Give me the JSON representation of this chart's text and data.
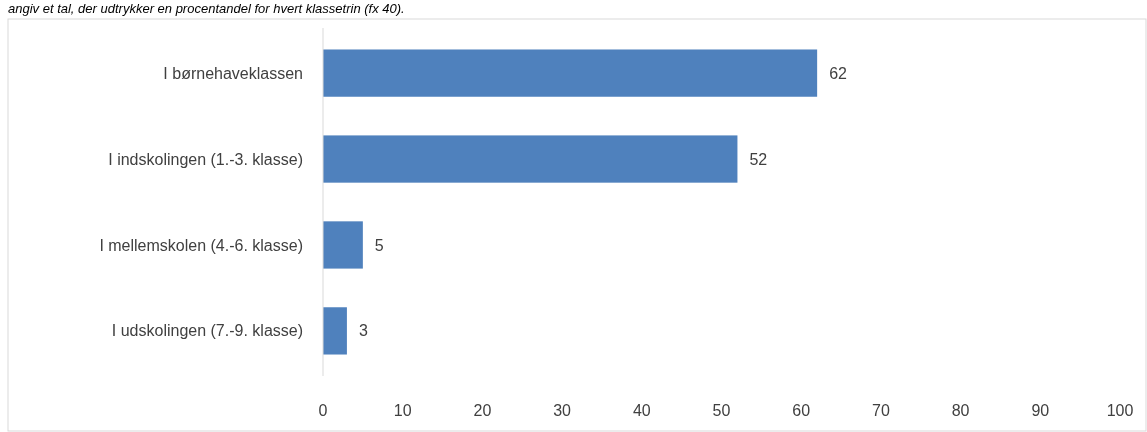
{
  "chart_data": {
    "type": "bar",
    "orientation": "horizontal",
    "subtitle": "angiv et tal, der udtrykker en procentandel for hvert klassetrin (fx 40).",
    "categories": [
      "I børnehaveklassen",
      "I indskolingen (1.-3. klasse)",
      "I mellemskolen (4.-6. klasse)",
      "I udskolingen (7.-9. klasse)"
    ],
    "values": [
      62,
      52,
      5,
      3
    ],
    "color": "#4f81bd",
    "data_labels": true,
    "xlim": [
      0,
      100
    ],
    "xticks": [
      0,
      10,
      20,
      30,
      40,
      50,
      60,
      70,
      80,
      90,
      100
    ],
    "grid": false
  }
}
